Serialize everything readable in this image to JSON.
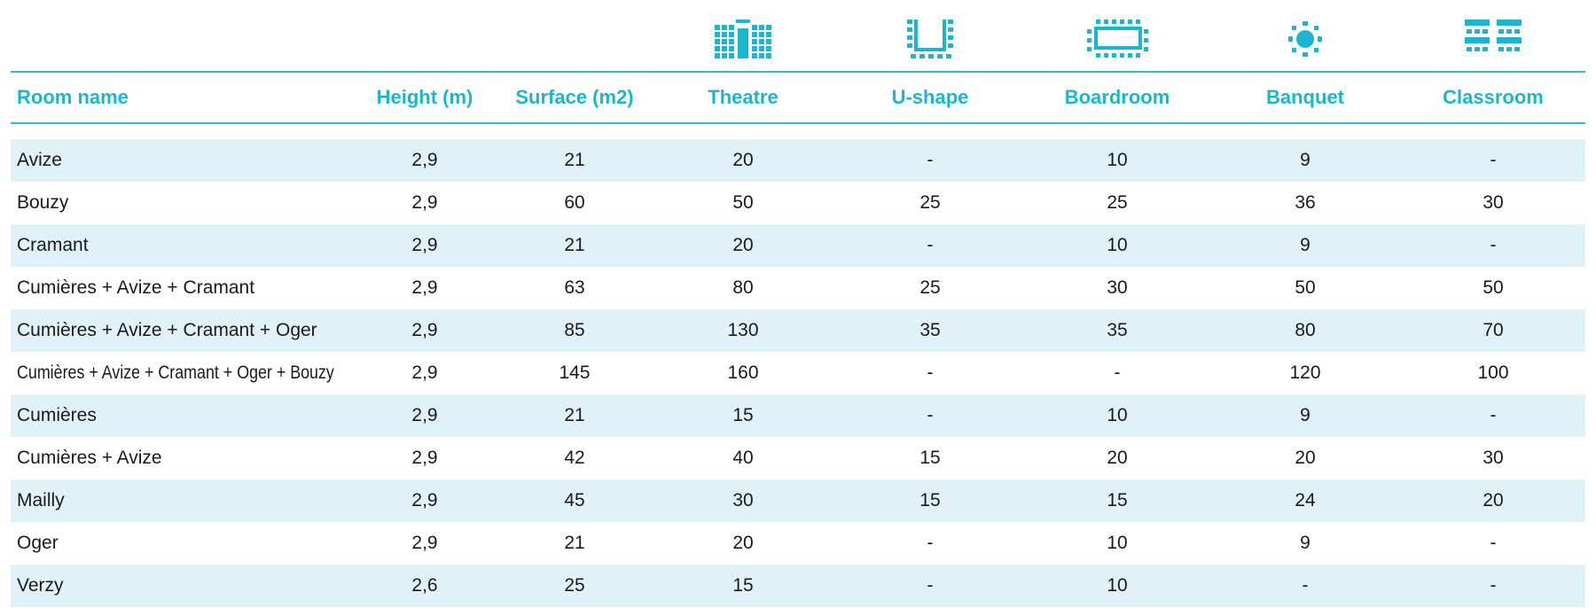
{
  "colors": {
    "accent": "#1cb5cf",
    "row_alt": "#e1f1f8",
    "text": "#1a1a1a"
  },
  "icons": [
    "theatre-icon",
    "u-shape-icon",
    "boardroom-icon",
    "banquet-icon",
    "classroom-icon"
  ],
  "headers": {
    "room": "Room name",
    "height": "Height (m)",
    "surface": "Surface (m2)",
    "theatre": "Theatre",
    "ushape": "U-shape",
    "boardroom": "Boardroom",
    "banquet": "Banquet",
    "classroom": "Classroom"
  },
  "rows": [
    {
      "name": "Avize",
      "height": "2,9",
      "surface": "21",
      "theatre": "20",
      "ushape": "-",
      "boardroom": "10",
      "banquet": "9",
      "classroom": "-"
    },
    {
      "name": "Bouzy",
      "height": "2,9",
      "surface": "60",
      "theatre": "50",
      "ushape": "25",
      "boardroom": "25",
      "banquet": "36",
      "classroom": "30"
    },
    {
      "name": "Cramant",
      "height": "2,9",
      "surface": "21",
      "theatre": "20",
      "ushape": "-",
      "boardroom": "10",
      "banquet": "9",
      "classroom": "-"
    },
    {
      "name": "Cumières + Avize + Cramant",
      "height": "2,9",
      "surface": "63",
      "theatre": "80",
      "ushape": "25",
      "boardroom": "30",
      "banquet": "50",
      "classroom": "50"
    },
    {
      "name": "Cumières + Avize + Cramant + Oger",
      "height": "2,9",
      "surface": "85",
      "theatre": "130",
      "ushape": "35",
      "boardroom": "35",
      "banquet": "80",
      "classroom": "70"
    },
    {
      "name": "Cumières + Avize + Cramant + Oger + Bouzy",
      "height": "2,9",
      "surface": "145",
      "theatre": "160",
      "ushape": "-",
      "boardroom": "-",
      "banquet": "120",
      "classroom": "100"
    },
    {
      "name": "Cumières",
      "height": "2,9",
      "surface": "21",
      "theatre": "15",
      "ushape": "-",
      "boardroom": "10",
      "banquet": "9",
      "classroom": "-"
    },
    {
      "name": "Cumières + Avize",
      "height": "2,9",
      "surface": "42",
      "theatre": "40",
      "ushape": "15",
      "boardroom": "20",
      "banquet": "20",
      "classroom": "30"
    },
    {
      "name": "Mailly",
      "height": "2,9",
      "surface": "45",
      "theatre": "30",
      "ushape": "15",
      "boardroom": "15",
      "banquet": "24",
      "classroom": "20"
    },
    {
      "name": "Oger",
      "height": "2,9",
      "surface": "21",
      "theatre": "20",
      "ushape": "-",
      "boardroom": "10",
      "banquet": "9",
      "classroom": "-"
    },
    {
      "name": "Verzy",
      "height": "2,6",
      "surface": "25",
      "theatre": "15",
      "ushape": "-",
      "boardroom": "10",
      "banquet": "-",
      "classroom": "-"
    }
  ]
}
